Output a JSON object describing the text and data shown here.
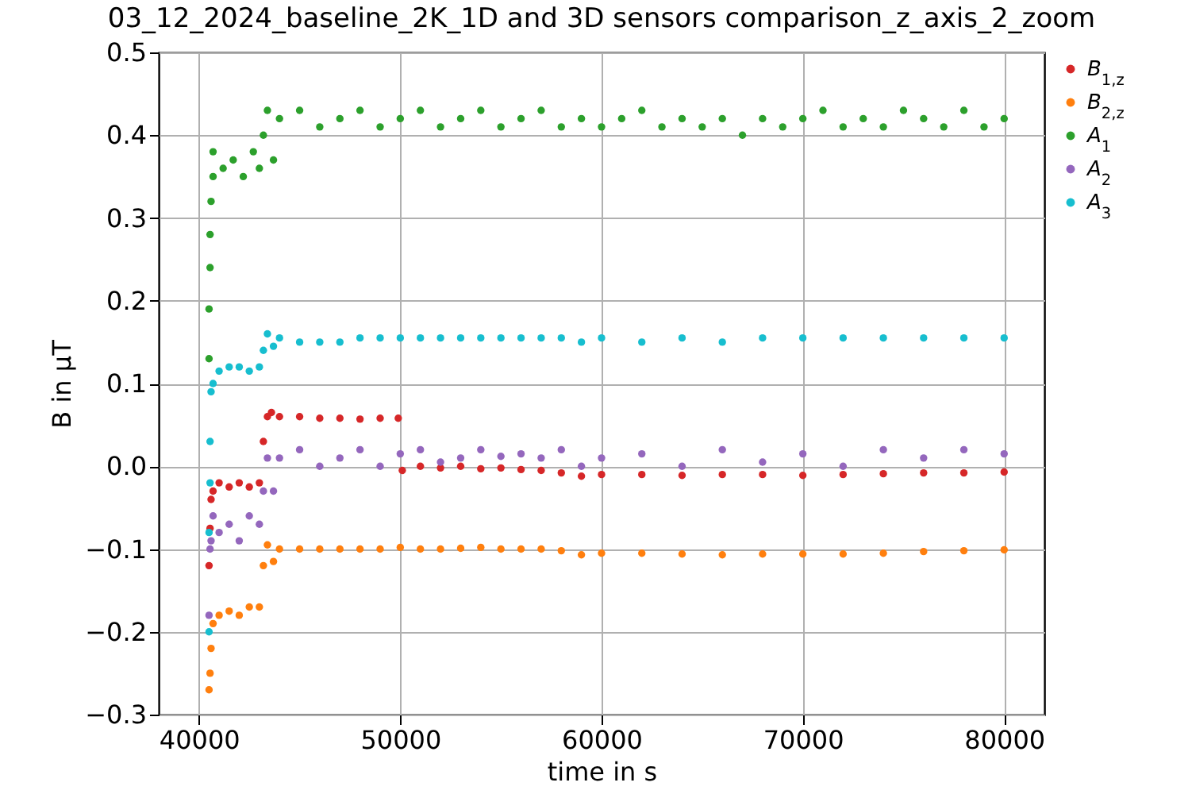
{
  "chart_data": {
    "type": "scatter",
    "title": "03_12_2024_baseline_2K_1D and 3D sensors comparison_z_axis_2_zoom",
    "xlabel": "time in s",
    "ylabel": "B in μT",
    "xlim": [
      38000,
      82000
    ],
    "xticks": [
      40000,
      50000,
      60000,
      70000,
      80000
    ],
    "ylim": [
      -0.3,
      0.5
    ],
    "yticks": [
      -0.3,
      -0.2,
      -0.1,
      {
        "value": 0,
        "label": "0.0"
      },
      0.1,
      0.2,
      0.3,
      0.4,
      0.5
    ],
    "grid": true,
    "legend": "top right",
    "marker": "circle",
    "series": [
      {
        "name": "B$_{1,z}$",
        "color": "#d62728",
        "x": [
          40500,
          40550,
          40600,
          40700,
          41000,
          41500,
          42000,
          42500,
          43000,
          43200,
          43400,
          43600,
          44000,
          45000,
          46000,
          47000,
          48000,
          49000,
          49900,
          50100,
          51000,
          52000,
          53000,
          54000,
          55000,
          56000,
          57000,
          58000,
          59000,
          60000,
          62000,
          64000,
          66000,
          68000,
          70000,
          72000,
          74000,
          76000,
          78000,
          80000
        ],
        "values": [
          -0.12,
          -0.075,
          -0.04,
          -0.03,
          -0.02,
          -0.025,
          -0.02,
          -0.025,
          -0.02,
          0.03,
          0.06,
          0.065,
          0.06,
          0.06,
          0.058,
          0.058,
          0.057,
          0.058,
          0.058,
          -0.005,
          0.0,
          -0.002,
          0.0,
          -0.003,
          -0.002,
          -0.004,
          -0.005,
          -0.008,
          -0.012,
          -0.01,
          -0.01,
          -0.011,
          -0.01,
          -0.01,
          -0.011,
          -0.01,
          -0.009,
          -0.008,
          -0.008,
          -0.007
        ]
      },
      {
        "name": "B$_{2,z}$",
        "color": "#ff7f0e",
        "x": [
          40500,
          40550,
          40600,
          40700,
          41000,
          41500,
          42000,
          42500,
          43000,
          43200,
          43400,
          43700,
          44000,
          45000,
          46000,
          47000,
          48000,
          49000,
          50000,
          51000,
          52000,
          53000,
          54000,
          55000,
          56000,
          57000,
          58000,
          59000,
          60000,
          62000,
          64000,
          66000,
          68000,
          70000,
          72000,
          74000,
          76000,
          78000,
          80000
        ],
        "values": [
          -0.27,
          -0.25,
          -0.22,
          -0.19,
          -0.18,
          -0.175,
          -0.18,
          -0.17,
          -0.17,
          -0.12,
          -0.095,
          -0.115,
          -0.1,
          -0.1,
          -0.1,
          -0.1,
          -0.1,
          -0.1,
          -0.098,
          -0.1,
          -0.1,
          -0.099,
          -0.098,
          -0.1,
          -0.1,
          -0.1,
          -0.102,
          -0.107,
          -0.105,
          -0.105,
          -0.106,
          -0.107,
          -0.106,
          -0.106,
          -0.106,
          -0.105,
          -0.103,
          -0.102,
          -0.101
        ]
      },
      {
        "name": "A$_{1}$",
        "color": "#2ca02c",
        "x": [
          40500,
          40500,
          40550,
          40550,
          40600,
          40700,
          40700,
          41200,
          41700,
          42200,
          42700,
          43000,
          43200,
          43400,
          43700,
          44000,
          45000,
          46000,
          47000,
          48000,
          49000,
          50000,
          51000,
          52000,
          53000,
          54000,
          55000,
          56000,
          57000,
          58000,
          59000,
          60000,
          61000,
          62000,
          63000,
          64000,
          65000,
          66000,
          67000,
          68000,
          69000,
          70000,
          71000,
          72000,
          73000,
          74000,
          75000,
          76000,
          77000,
          78000,
          79000,
          80000
        ],
        "values": [
          0.13,
          0.19,
          0.24,
          0.28,
          0.32,
          0.35,
          0.38,
          0.36,
          0.37,
          0.35,
          0.38,
          0.36,
          0.4,
          0.43,
          0.37,
          0.42,
          0.43,
          0.41,
          0.42,
          0.43,
          0.41,
          0.42,
          0.43,
          0.41,
          0.42,
          0.43,
          0.41,
          0.42,
          0.43,
          0.41,
          0.42,
          0.41,
          0.42,
          0.43,
          0.41,
          0.42,
          0.41,
          0.42,
          0.4,
          0.42,
          0.41,
          0.42,
          0.43,
          0.41,
          0.42,
          0.41,
          0.43,
          0.42,
          0.41,
          0.43,
          0.41,
          0.42
        ]
      },
      {
        "name": "A$_{2}$",
        "color": "#9467bd",
        "x": [
          40500,
          40550,
          40600,
          40700,
          41000,
          41500,
          42000,
          42500,
          43000,
          43200,
          43400,
          43700,
          44000,
          45000,
          46000,
          47000,
          48000,
          49000,
          50000,
          51000,
          52000,
          53000,
          54000,
          55000,
          56000,
          57000,
          58000,
          59000,
          60000,
          62000,
          64000,
          66000,
          68000,
          70000,
          72000,
          74000,
          76000,
          78000,
          80000
        ],
        "values": [
          -0.18,
          -0.1,
          -0.09,
          -0.06,
          -0.08,
          -0.07,
          -0.09,
          -0.06,
          -0.07,
          -0.03,
          0.01,
          -0.03,
          0.01,
          0.02,
          0.0,
          0.01,
          0.02,
          0.0,
          0.015,
          0.02,
          0.005,
          0.01,
          0.02,
          0.012,
          0.015,
          0.01,
          0.02,
          0.0,
          0.01,
          0.015,
          0.0,
          0.02,
          0.005,
          0.015,
          0.0,
          0.02,
          0.01,
          0.02,
          0.015
        ]
      },
      {
        "name": "A$_{3}$",
        "color": "#17becf",
        "x": [
          40500,
          40500,
          40550,
          40550,
          40600,
          40700,
          41000,
          41500,
          42000,
          42500,
          43000,
          43200,
          43400,
          43700,
          44000,
          45000,
          46000,
          47000,
          48000,
          49000,
          50000,
          51000,
          52000,
          53000,
          54000,
          55000,
          56000,
          57000,
          58000,
          59000,
          60000,
          62000,
          64000,
          66000,
          68000,
          70000,
          72000,
          74000,
          76000,
          78000,
          80000
        ],
        "values": [
          -0.2,
          -0.08,
          -0.02,
          0.03,
          0.09,
          0.1,
          0.115,
          0.12,
          0.12,
          0.115,
          0.12,
          0.14,
          0.16,
          0.145,
          0.155,
          0.15,
          0.15,
          0.15,
          0.155,
          0.155,
          0.155,
          0.155,
          0.155,
          0.155,
          0.155,
          0.155,
          0.155,
          0.155,
          0.155,
          0.15,
          0.155,
          0.15,
          0.155,
          0.15,
          0.155,
          0.155,
          0.155,
          0.155,
          0.155,
          0.155,
          0.155
        ]
      }
    ]
  }
}
